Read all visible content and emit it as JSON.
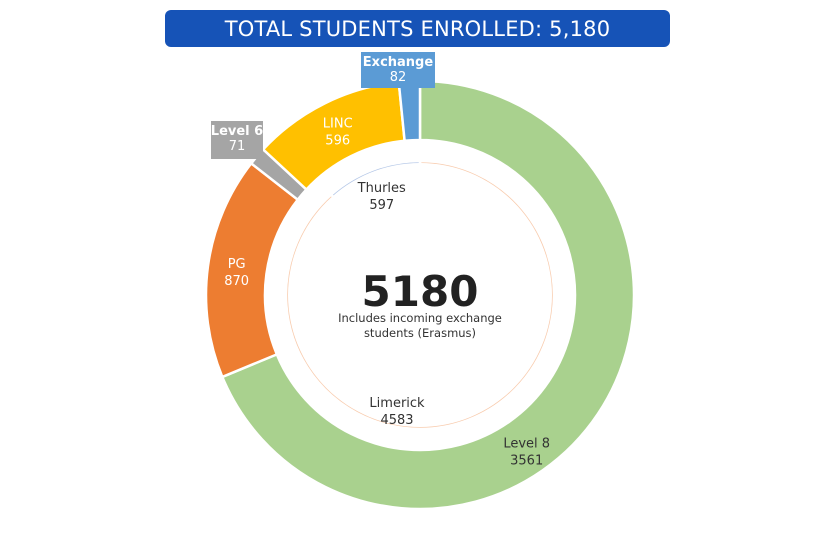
{
  "header": {
    "title": "TOTAL STUDENTS ENROLLED: 5,180"
  },
  "chart_data": {
    "type": "donut",
    "center": {
      "value": "5180",
      "caption_line1": "Includes incoming exchange",
      "caption_line2": "students (Erasmus)"
    },
    "outer_ring": [
      {
        "label": "Level 8",
        "value": 3561,
        "color": "#a9d18e",
        "text_color": "#333333"
      },
      {
        "label": "PG",
        "value": 870,
        "color": "#ed7d31",
        "text_color": "#ffffff"
      },
      {
        "label": "Level 6",
        "value": 71,
        "color": "#a5a5a5",
        "text_color": "#ffffff"
      },
      {
        "label": "LINC",
        "value": 596,
        "color": "#ffc000",
        "text_color": "#ffffff"
      },
      {
        "label": "Exchange",
        "value": 82,
        "color": "#5b9bd5",
        "text_color": "#ffffff"
      }
    ],
    "inner_ring": [
      {
        "label": "Limerick",
        "value": 4583,
        "color": "#f8cbad",
        "text_color": "#333333"
      },
      {
        "label": "Thurles",
        "value": 597,
        "color": "#b4c7e7",
        "text_color": "#333333"
      }
    ]
  }
}
